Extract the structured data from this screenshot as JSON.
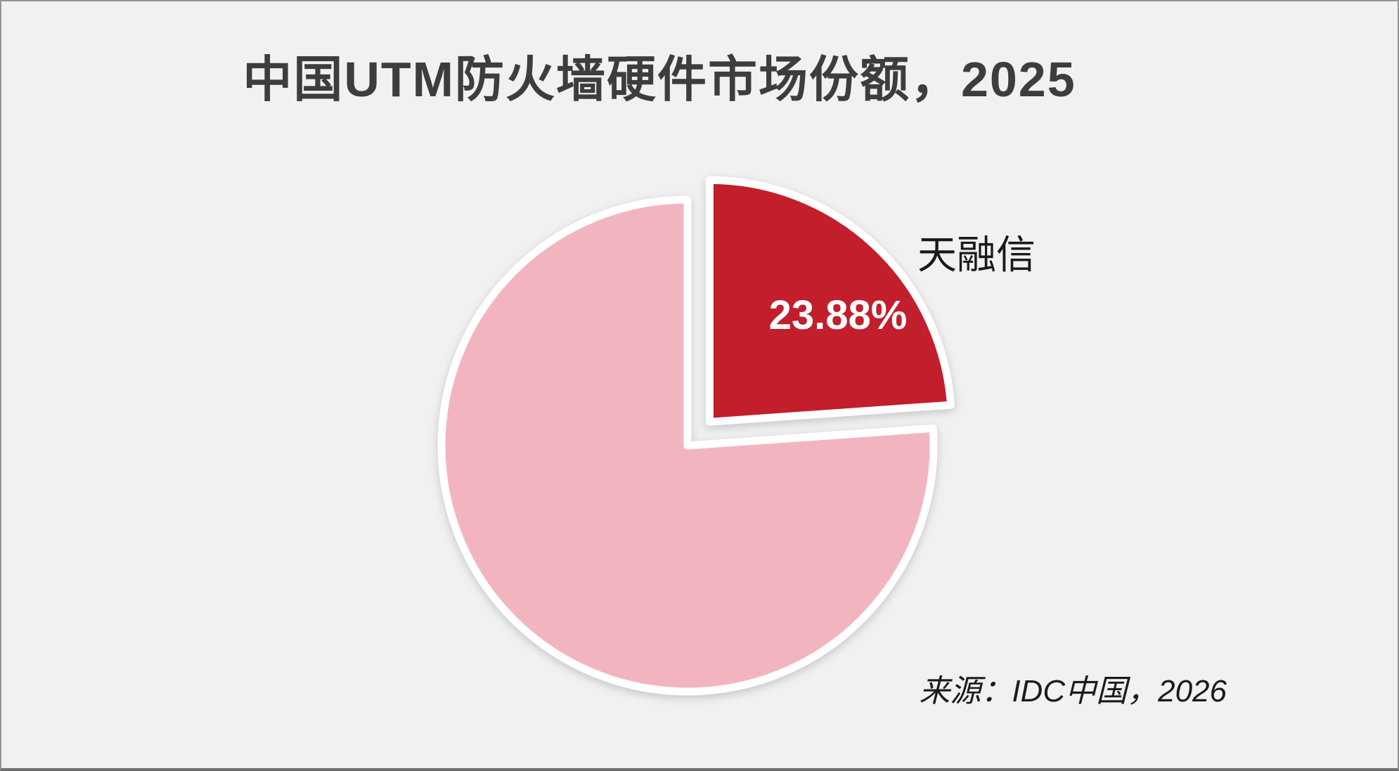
{
  "chart_data": {
    "type": "pie",
    "title": "中国UTM防火墙硬件市场份额，2025",
    "slices": [
      {
        "label": "天融信",
        "value": 23.88,
        "data_label": "23.88%",
        "color": "#C21E2C",
        "exploded": true
      },
      {
        "label": "",
        "value": 76.12,
        "data_label": "",
        "color": "#F2B5C0",
        "exploded": false
      }
    ],
    "start_angle_deg": 0,
    "direction": "clockwise",
    "legend": "none",
    "source_note": "来源：IDC中国，2026"
  },
  "colors": {
    "background": "#F1F1F1",
    "frame_border": "#949494",
    "title_text": "#3d3d3d",
    "label_text": "#1a1a1a",
    "value_text": "#ffffff",
    "slice_stroke": "#ffffff"
  }
}
